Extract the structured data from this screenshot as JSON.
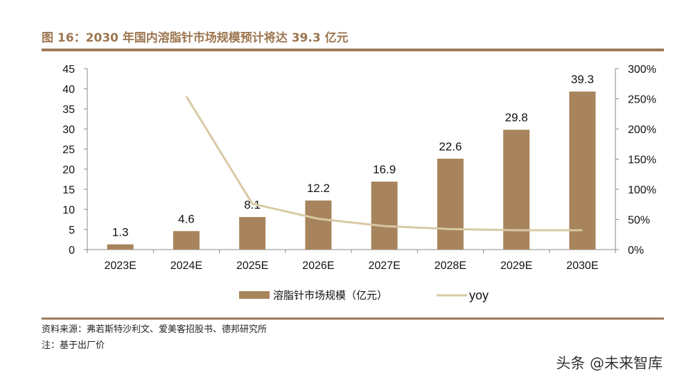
{
  "title": "图 16：2030 年国内溶脂针市场规模预计将达 39.3 亿元",
  "chart_data": {
    "type": "bar",
    "categories": [
      "2023E",
      "2024E",
      "2025E",
      "2026E",
      "2027E",
      "2028E",
      "2029E",
      "2030E"
    ],
    "series": [
      {
        "name": "溶脂针市场规模（亿元）",
        "type": "bar",
        "axis": "left",
        "color": "#a8845c",
        "values": [
          1.3,
          4.6,
          8.1,
          12.2,
          16.9,
          22.6,
          29.8,
          39.3
        ],
        "labels": [
          "1.3",
          "4.6",
          "8.1",
          "12.2",
          "16.9",
          "22.6",
          "29.8",
          "39.3"
        ]
      },
      {
        "name": "yoy",
        "type": "line",
        "axis": "right",
        "color": "#d8c9a3",
        "values": [
          null,
          254,
          76,
          51,
          39,
          34,
          32,
          32
        ]
      }
    ],
    "ylim_left": [
      0,
      45
    ],
    "yticks_left": [
      "0",
      "5",
      "10",
      "15",
      "20",
      "25",
      "30",
      "35",
      "40",
      "45"
    ],
    "ylim_right": [
      0,
      300
    ],
    "yticks_right": [
      "0%",
      "50%",
      "100%",
      "150%",
      "200%",
      "250%",
      "300%"
    ],
    "grid": false,
    "legend": "bottom"
  },
  "source": "资料来源：弗若斯特沙利文、爱美客招股书、德邦研究所",
  "note": "注：基于出厂价",
  "watermark": "头条 @未来智库"
}
